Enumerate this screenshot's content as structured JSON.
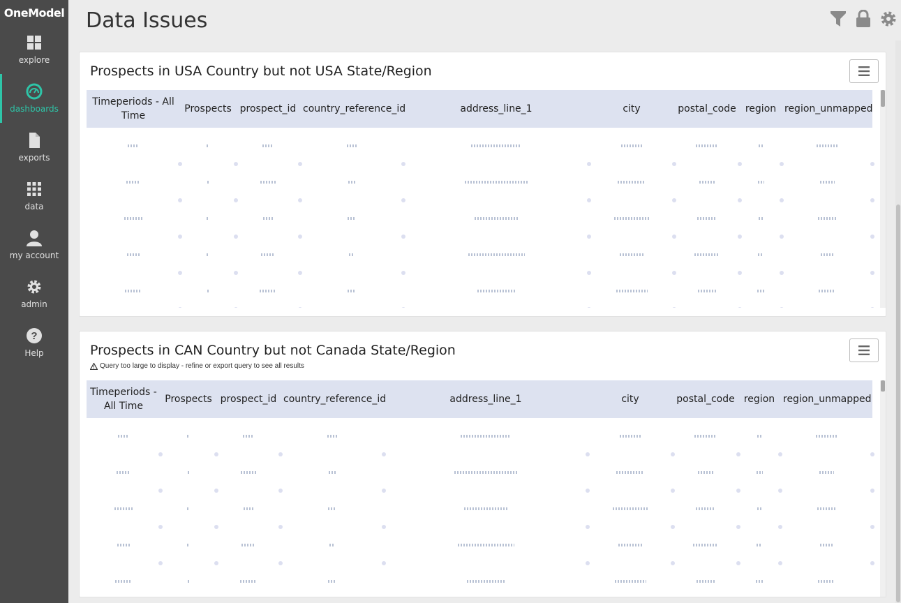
{
  "app": {
    "logo": "OneModel"
  },
  "sidebar": {
    "items": [
      {
        "label": "explore",
        "icon": "grid-icon"
      },
      {
        "label": "dashboards",
        "icon": "dashboard-gauge-icon"
      },
      {
        "label": "exports",
        "icon": "file-icon"
      },
      {
        "label": "data",
        "icon": "data-grid-icon"
      },
      {
        "label": "my account",
        "icon": "user-icon"
      },
      {
        "label": "admin",
        "icon": "gear-icon"
      },
      {
        "label": "Help",
        "icon": "help-icon"
      }
    ]
  },
  "header": {
    "title": "Data Issues"
  },
  "panels": [
    {
      "title": "Prospects in USA Country but not USA State/Region",
      "warning": "",
      "columns": [
        "Timeperiods - All Time",
        "Prospects",
        "prospect_id",
        "country_reference_id",
        "address_line_1",
        "city",
        "postal_code",
        "region",
        "region_unmapped"
      ]
    },
    {
      "title": "Prospects in CAN Country but not Canada State/Region",
      "warning": "Query too large to display - refine or export query to see all results",
      "columns": [
        "Timeperiods - All Time",
        "Prospects",
        "prospect_id",
        "country_reference_id",
        "address_line_1",
        "city",
        "postal_code",
        "region",
        "region_unmapped"
      ]
    }
  ],
  "colors": {
    "accent": "#2ec5a8",
    "sidebar": "#4a4a4a",
    "table_header": "#dde2f0"
  }
}
